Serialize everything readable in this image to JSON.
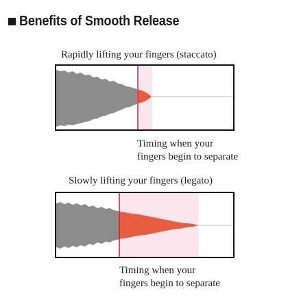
{
  "title": "Benefits of Smooth Release",
  "panels": [
    {
      "heading": "Rapidly lifting your fingers (staccato)",
      "annotation": [
        "Timing when your",
        "fingers begin to separate"
      ]
    },
    {
      "heading": "Slowly lifting your fingers (legato)",
      "annotation": [
        "Timing when your",
        "fingers begin to separate"
      ]
    }
  ],
  "colors": {
    "waveform_gray": "#8c8c8c",
    "release_red": "#e85d3f",
    "release_region": "#fbe6ee",
    "marker_line": "#cc2233",
    "baseline": "#bdbdbd"
  }
}
